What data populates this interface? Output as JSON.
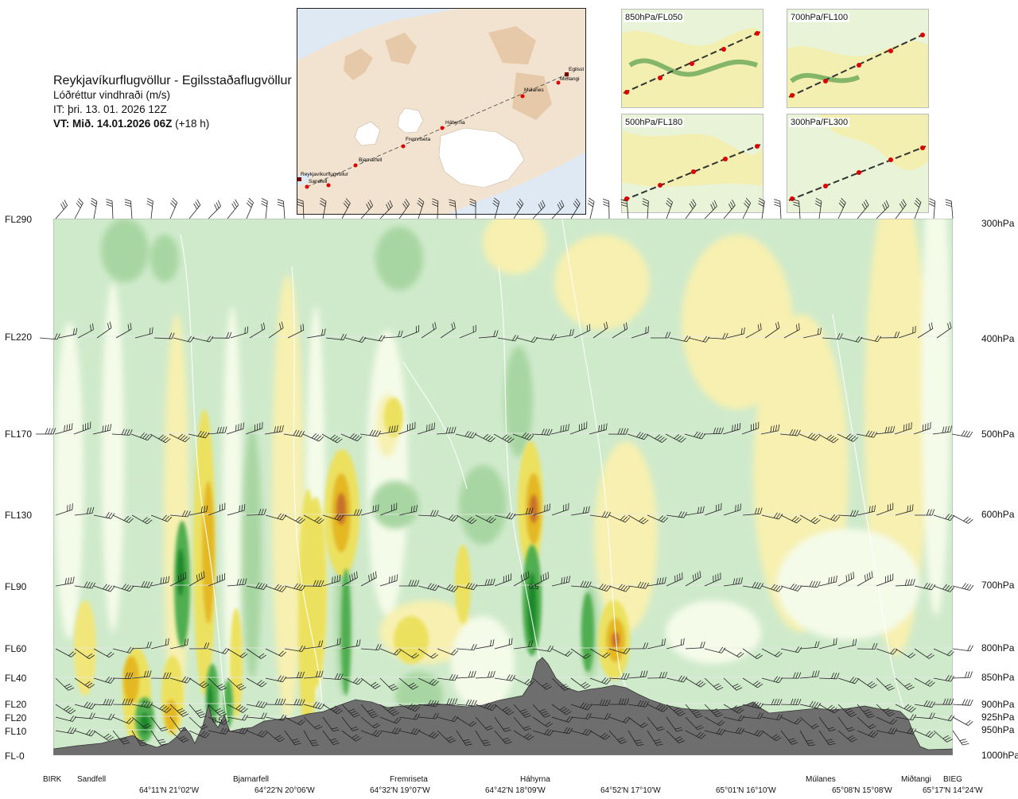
{
  "header": {
    "title": "Reykjavíkurflugvöllur - Egilsstaðaflugvöllur",
    "subtitle": "Lóðréttur vindhraði (m/s)",
    "it": "IT: þri. 13. 01. 2026 12Z",
    "vt": "VT: Mið. 14.01.2026 06Z",
    "vt_suffix": "(+18 h)"
  },
  "route_map": {
    "points": [
      {
        "name": "Reykjavíkurflugvöllur"
      },
      {
        "name": "Sandfell"
      },
      {
        "name": "Bjarnarfell"
      },
      {
        "name": "Fremriseta"
      },
      {
        "name": "Háhyrna"
      },
      {
        "name": "Múlanes"
      },
      {
        "name": "Miðtangi"
      },
      {
        "name": "Egilsst"
      }
    ]
  },
  "thumbnails": [
    {
      "label": "850hPa/FL050"
    },
    {
      "label": "700hPa/FL100"
    },
    {
      "label": "500hPa/FL180"
    },
    {
      "label": "300hPa/FL300"
    }
  ],
  "levels": [
    {
      "fl": "FL290",
      "hpa": "300hPa"
    },
    {
      "fl": "FL220",
      "hpa": "400hPa"
    },
    {
      "fl": "FL170",
      "hpa": "500hPa"
    },
    {
      "fl": "FL130",
      "hpa": "600hPa"
    },
    {
      "fl": "FL90",
      "hpa": "700hPa"
    },
    {
      "fl": "FL60",
      "hpa": "800hPa"
    },
    {
      "fl": "FL40",
      "hpa": "850hPa"
    },
    {
      "fl": "FL20",
      "hpa": "900hPa"
    },
    {
      "fl": "FL20",
      "hpa": "925hPa"
    },
    {
      "fl": "FL10",
      "hpa": "950hPa"
    },
    {
      "fl": "FL-0",
      "hpa": "1000hPa"
    }
  ],
  "bottom_places": [
    "BIRK",
    "Sandfell",
    "Bjarnarfell",
    "Fremriseta",
    "Háhyrna",
    "Múlanes",
    "Miðtangi",
    "BIEG"
  ],
  "bottom_coords": [
    "64°11'N 21°02'W",
    "64°22'N 20°06'W",
    "64°32'N 19°07'W",
    "64°42'N 18°09'W",
    "64°52'N 17°10'W",
    "65°01'N 16°10'W",
    "65°08'N 15°08'W",
    "65°17'N 14°24'W"
  ],
  "contour_labels": [
    "0.5",
    "0.5"
  ],
  "colors": {
    "strong_up": "#1a8a2a",
    "up": "#4fae4f",
    "weak_up": "#9fd09a",
    "light_up": "#c9e8c4",
    "neutral": "#f4fbe9",
    "light_down": "#f7f0b0",
    "down": "#ece15e",
    "strong_down": "#e4b820",
    "very_strong_down": "#c8702a",
    "terrain": "#6e6e6e",
    "map_land": "#f2e3d0",
    "map_ice": "#ffffff",
    "map_sea": "#dfe9f3",
    "route_point": "#e00000"
  }
}
